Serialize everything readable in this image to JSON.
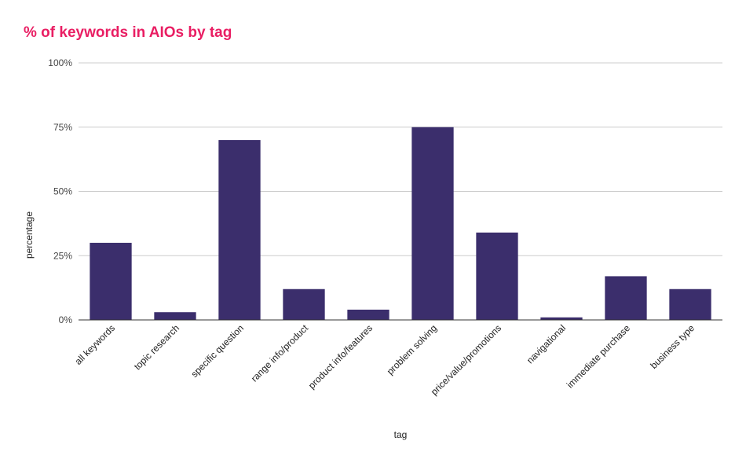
{
  "chart_data": {
    "type": "bar",
    "title": "% of keywords in AIOs by tag",
    "xlabel": "tag",
    "ylabel": "percentage",
    "categories": [
      "all keywords",
      "topic research",
      "specific question",
      "range info/product",
      "product info/features",
      "problem solving",
      "price/value/promotions",
      "navigational",
      "immediate purchase",
      "business type"
    ],
    "series": [
      {
        "values": [
          30,
          3,
          70,
          12,
          4,
          75,
          34,
          1,
          17,
          12
        ]
      }
    ],
    "ylim": [
      0,
      100
    ],
    "yticks": [
      0,
      25,
      50,
      75,
      100
    ],
    "ytick_labels": [
      "0%",
      "25%",
      "50%",
      "75%",
      "100%"
    ],
    "grid": true,
    "legend": "none",
    "bar_color": "#3b2e6c",
    "title_color": "#e91e63"
  }
}
